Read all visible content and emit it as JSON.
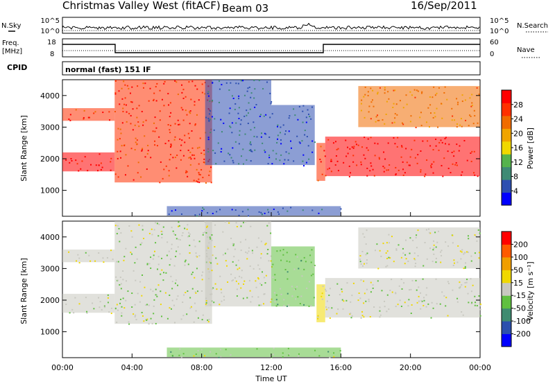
{
  "header": {
    "title": "Christmas Valley West (fitACF)",
    "beam": "Beam 03",
    "date": "16/Sep/2011"
  },
  "nsky_panel": {
    "left_label": "N.Sky",
    "right_label": "N.Search",
    "left_ticks": [
      "10^5",
      "10^0"
    ],
    "right_ticks": [
      "10^5",
      "10^0"
    ]
  },
  "freq_panel": {
    "left_label_1": "Freq.",
    "left_label_2": "[MHz]",
    "left_ticks": [
      "18",
      "8"
    ],
    "right_label": "Nave",
    "right_ticks": [
      "60",
      "0"
    ]
  },
  "cpid_panel": {
    "label": "CPID",
    "mode": "normal (fast) 151 IF"
  },
  "colors": {
    "power": [
      "#0000ff",
      "#2d4fb0",
      "#3e8a74",
      "#55b34c",
      "#f0d800",
      "#f0a400",
      "#f06c00",
      "#ff3000",
      "#ff0000"
    ],
    "velocity": [
      "#0000ff",
      "#2b4fae",
      "#3f8b70",
      "#60c040",
      "#c8c8c0",
      "#f0d800",
      "#f09e00",
      "#ff5a00",
      "#ff0000"
    ]
  },
  "chart_data": [
    {
      "type": "heatmap",
      "name": "power",
      "ylabel": "Slant Range [km]",
      "y_ticks": [
        "1000",
        "2000",
        "3000",
        "4000"
      ],
      "xlim": [
        0,
        24
      ],
      "ylim": [
        180,
        4500
      ],
      "colorbar_label": "Power [dB]",
      "colorbar_ticks": [
        "28",
        "24",
        "20",
        "16",
        "12",
        "8",
        "4"
      ],
      "colorbar_range": [
        0,
        32
      ],
      "regions": [
        {
          "t": [
            0,
            3
          ],
          "r": [
            1600,
            2200
          ],
          "level": 30
        },
        {
          "t": [
            0,
            3
          ],
          "r": [
            3200,
            3600
          ],
          "level": 28
        },
        {
          "t": [
            3,
            8.6
          ],
          "r": [
            1250,
            4500
          ],
          "level": 27
        },
        {
          "t": [
            8.2,
            12
          ],
          "r": [
            1800,
            4500
          ],
          "level": 6
        },
        {
          "t": [
            12,
            14.5
          ],
          "r": [
            1800,
            3700
          ],
          "level": 5
        },
        {
          "t": [
            14.6,
            15.1
          ],
          "r": [
            1300,
            2500
          ],
          "level": 26
        },
        {
          "t": [
            15.1,
            24
          ],
          "r": [
            1450,
            2700
          ],
          "level": 29
        },
        {
          "t": [
            17,
            24
          ],
          "r": [
            3000,
            4300
          ],
          "level": 22
        },
        {
          "t": [
            6,
            16
          ],
          "r": [
            200,
            500
          ],
          "level": 6
        }
      ]
    },
    {
      "type": "heatmap",
      "name": "velocity",
      "xlabel": "Time UT",
      "ylabel": "Slant Range [km]",
      "x_ticks": [
        "00:00",
        "04:00",
        "08:00",
        "12:00",
        "16:00",
        "20:00",
        "00:00"
      ],
      "y_ticks": [
        "1000",
        "2000",
        "3000",
        "4000"
      ],
      "xlim": [
        0,
        24
      ],
      "ylim": [
        180,
        4500
      ],
      "colorbar_label": "Velocity [m s⁻¹]",
      "colorbar_ticks": [
        "200",
        "100",
        "50",
        "15",
        "-15",
        "-50",
        "-100",
        "-200"
      ],
      "colorbar_range": [
        -250,
        250
      ],
      "regions": [
        {
          "t": [
            0,
            3
          ],
          "r": [
            1600,
            2200
          ],
          "level": 0
        },
        {
          "t": [
            0,
            3
          ],
          "r": [
            3200,
            3600
          ],
          "level": 0
        },
        {
          "t": [
            3,
            8.6
          ],
          "r": [
            1250,
            4500
          ],
          "level": -10
        },
        {
          "t": [
            8.2,
            12
          ],
          "r": [
            1800,
            4500
          ],
          "level": 0
        },
        {
          "t": [
            12,
            14.5
          ],
          "r": [
            1800,
            3700
          ],
          "level": -40
        },
        {
          "t": [
            14.6,
            15.1
          ],
          "r": [
            1300,
            2500
          ],
          "level": 40
        },
        {
          "t": [
            15.1,
            24
          ],
          "r": [
            1450,
            2700
          ],
          "level": 0
        },
        {
          "t": [
            17,
            24
          ],
          "r": [
            3000,
            4300
          ],
          "level": 5
        },
        {
          "t": [
            6,
            16
          ],
          "r": [
            200,
            500
          ],
          "level": -30
        }
      ]
    }
  ]
}
